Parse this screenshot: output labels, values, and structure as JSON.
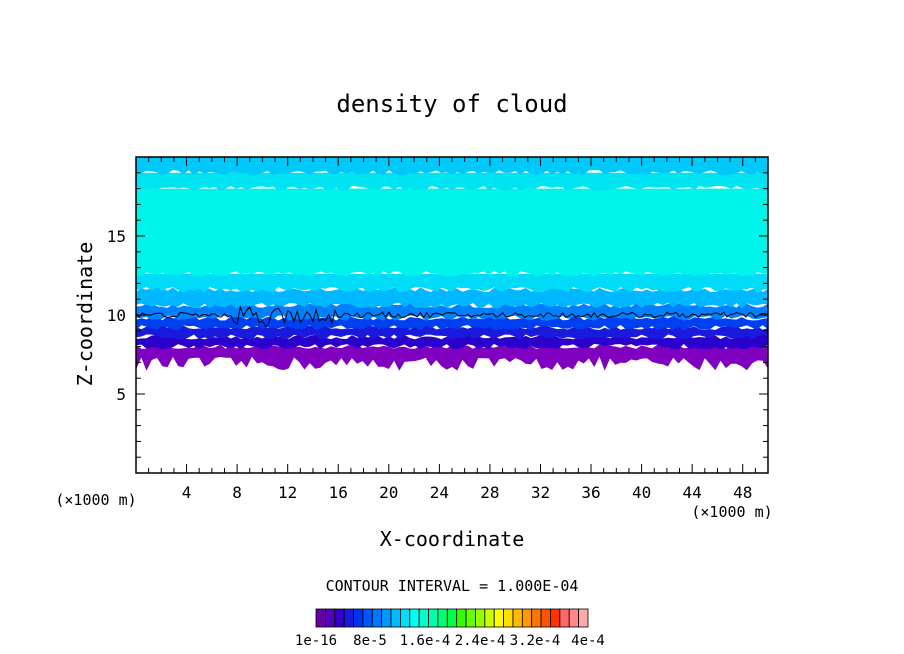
{
  "chart_data": {
    "type": "heatmap",
    "title": "density of cloud",
    "xlabel": "X-coordinate",
    "ylabel": "Z-coordinate",
    "x_unit": "(×1000 m)",
    "y_unit": "(×1000 m)",
    "xlim": [
      0,
      50
    ],
    "ylim": [
      0,
      20
    ],
    "x_ticks": [
      4,
      8,
      12,
      16,
      20,
      24,
      28,
      32,
      36,
      40,
      44,
      48
    ],
    "y_ticks": [
      5,
      10,
      15
    ],
    "contour_interval_text": "CONTOUR INTERVAL = 1.000E-04",
    "colorbar_labels": [
      "1e-16",
      "8e-5",
      "1.6e-4",
      "2.4e-4",
      "3.2e-4",
      "4e-4"
    ],
    "colorbar_colors": [
      "#6600aa",
      "#5500bb",
      "#3300cc",
      "#1a1add",
      "#0033ee",
      "#0055ff",
      "#0077ff",
      "#0099ff",
      "#00bbff",
      "#00ddff",
      "#00ffee",
      "#00ffcc",
      "#00ffaa",
      "#00ff77",
      "#00ff44",
      "#33ff00",
      "#66ff00",
      "#99ff00",
      "#ccff00",
      "#ffff00",
      "#ffdd00",
      "#ffbb00",
      "#ff9900",
      "#ff7700",
      "#ff5500",
      "#ff3300",
      "#ff6666",
      "#ff8888",
      "#ffaaaa"
    ],
    "cloud_layer": {
      "base_z": 7.5,
      "top_z": 19.5,
      "contour_z": 10.0,
      "bands": [
        {
          "z0": 7.0,
          "z1": 8.0,
          "color": "#8000c0"
        },
        {
          "z0": 8.0,
          "z1": 8.6,
          "color": "#2a00cc"
        },
        {
          "z0": 8.6,
          "z1": 9.2,
          "color": "#1a1add"
        },
        {
          "z0": 9.2,
          "z1": 9.8,
          "color": "#0040f0"
        },
        {
          "z0": 9.8,
          "z1": 10.6,
          "color": "#0080ff"
        },
        {
          "z0": 10.6,
          "z1": 11.6,
          "color": "#00b8ff"
        },
        {
          "z0": 11.6,
          "z1": 12.6,
          "color": "#00dcf8"
        },
        {
          "z0": 12.6,
          "z1": 18.0,
          "color": "#00f4ea"
        },
        {
          "z0": 18.0,
          "z1": 19.0,
          "color": "#00e4f2"
        },
        {
          "z0": 19.0,
          "z1": 20.0,
          "color": "#00c8f8"
        }
      ]
    }
  }
}
